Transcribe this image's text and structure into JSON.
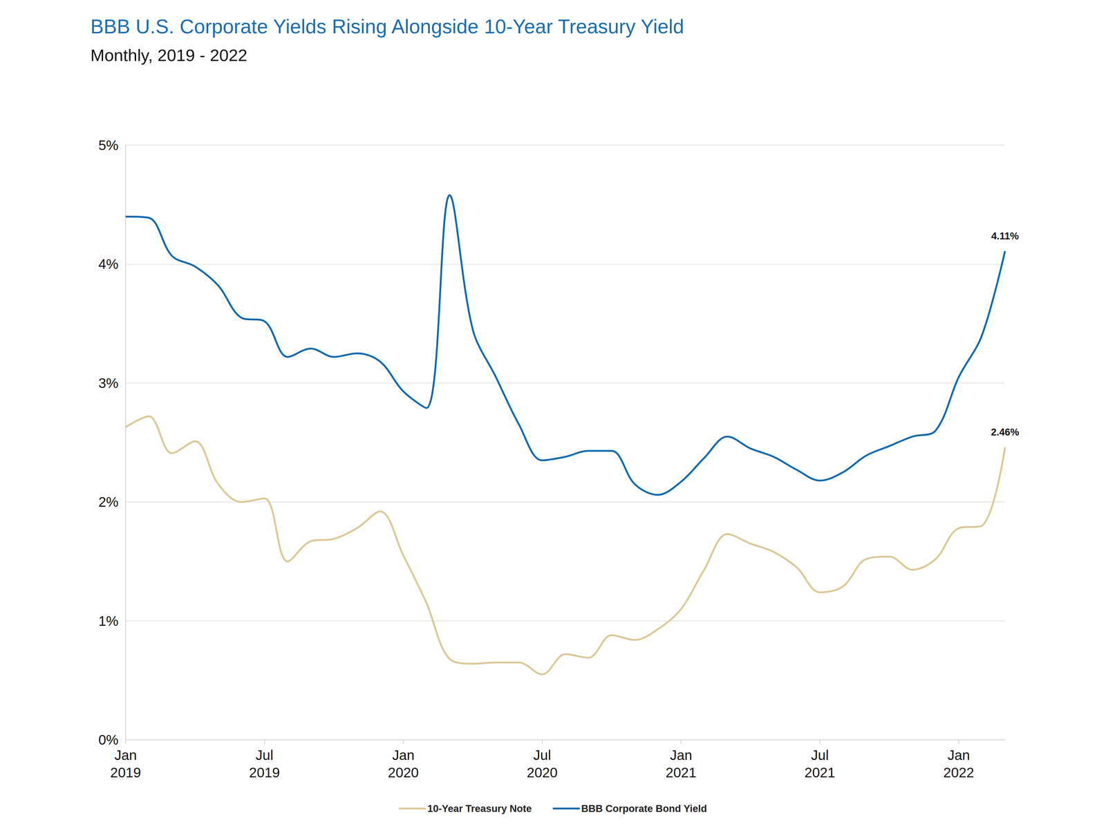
{
  "chart_data": {
    "type": "line",
    "title": "BBB U.S. Corporate Yields Rising Alongside 10-Year Treasury Yield",
    "subtitle": "Monthly, 2019 - 2022",
    "categories": [
      "Jan\n2019",
      null,
      null,
      null,
      null,
      null,
      "Jul\n2019",
      null,
      null,
      null,
      null,
      null,
      "Jan\n2020",
      null,
      null,
      null,
      null,
      null,
      "Jul\n2020",
      null,
      null,
      null,
      null,
      null,
      "Jan\n2021",
      null,
      null,
      null,
      null,
      null,
      "Jul\n2021",
      null,
      null,
      null,
      null,
      null,
      "Jan\n2022",
      null,
      null
    ],
    "series": [
      {
        "name": "10-Year Treasury Note",
        "color": "#dcc895",
        "values": [
          2.63,
          2.72,
          2.41,
          2.51,
          2.15,
          2.0,
          2.03,
          1.5,
          1.67,
          1.69,
          1.78,
          1.92,
          1.55,
          1.15,
          0.68,
          0.64,
          0.65,
          0.65,
          0.55,
          0.72,
          0.69,
          0.88,
          0.84,
          0.93,
          1.1,
          1.43,
          1.73,
          1.65,
          1.58,
          1.45,
          1.24,
          1.29,
          1.52,
          1.54,
          1.43,
          1.52,
          1.78,
          1.8,
          2.46
        ]
      },
      {
        "name": "BBB Corporate Bond Yield",
        "color": "#0f68b0",
        "values": [
          4.4,
          4.39,
          4.07,
          3.98,
          3.82,
          3.55,
          3.52,
          3.22,
          3.29,
          3.22,
          3.25,
          3.18,
          2.93,
          2.79,
          4.58,
          3.45,
          3.05,
          2.65,
          2.35,
          2.38,
          2.43,
          2.43,
          2.15,
          2.06,
          2.17,
          2.37,
          2.55,
          2.45,
          2.38,
          2.27,
          2.18,
          2.25,
          2.39,
          2.47,
          2.55,
          2.6,
          3.05,
          3.4,
          4.11
        ]
      }
    ],
    "annotations": [
      {
        "series": "BBB Corporate Bond Yield",
        "text": "4.11%"
      },
      {
        "series": "10-Year Treasury Note",
        "text": "2.46%"
      }
    ],
    "ylim": [
      0,
      5
    ],
    "yticks": [
      {
        "value": 0,
        "label": "0%"
      },
      {
        "value": 1,
        "label": "1%"
      },
      {
        "value": 2,
        "label": "2%"
      },
      {
        "value": 3,
        "label": "3%"
      },
      {
        "value": 4,
        "label": "4%"
      },
      {
        "value": 5,
        "label": "5%"
      }
    ],
    "grid": true,
    "legend": "bottom",
    "line_style": "solid",
    "marker": "none"
  }
}
